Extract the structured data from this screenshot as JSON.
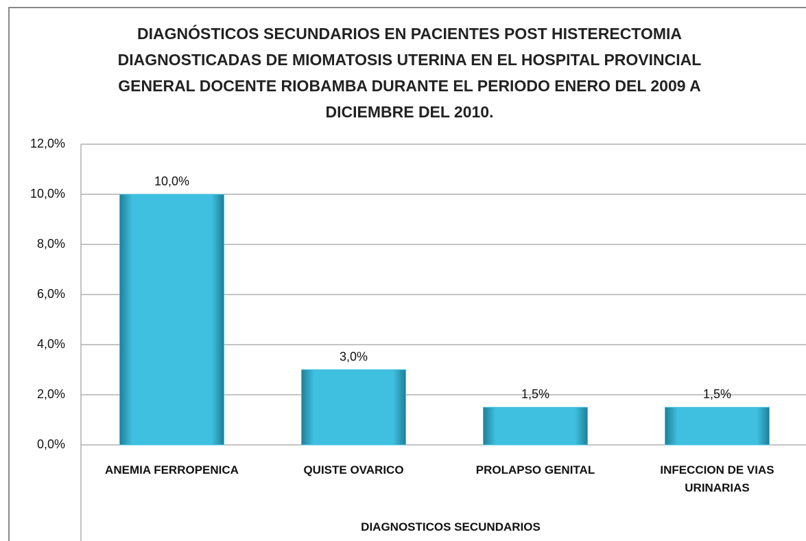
{
  "chart_data": {
    "type": "bar",
    "title": "DIAGNÓSTICOS SECUNDARIOS EN PACIENTES POST HISTERECTOMIA DIAGNOSTICADAS DE MIOMATOSIS UTERINA EN EL HOSPITAL PROVINCIAL GENERAL DOCENTE RIOBAMBA DURANTE EL PERIODO ENERO DEL 2009 A DICIEMBRE DEL 2010.",
    "x_label": "DIAGNOSTICOS SECUNDARIOS",
    "categories": [
      "ANEMIA FERROPENICA",
      "QUISTE OVARICO",
      "PROLAPSO GENITAL",
      "INFECCION DE VIAS URINARIAS"
    ],
    "values": [
      10.0,
      3.0,
      1.5,
      1.5
    ],
    "value_labels": [
      "10,0%",
      "3,0%",
      "1,5%",
      "1,5%"
    ],
    "color": "#3fc0e0",
    "ylim": [
      0,
      12
    ],
    "yticks": [
      {
        "value": 0,
        "label": "0,0%"
      },
      {
        "value": 2,
        "label": "2,0%"
      },
      {
        "value": 4,
        "label": "4,0%"
      },
      {
        "value": 6,
        "label": "6,0%"
      },
      {
        "value": 8,
        "label": "8,0%"
      },
      {
        "value": 10,
        "label": "10,0%"
      },
      {
        "value": 12,
        "label": "12,0%"
      }
    ],
    "grid": true
  }
}
